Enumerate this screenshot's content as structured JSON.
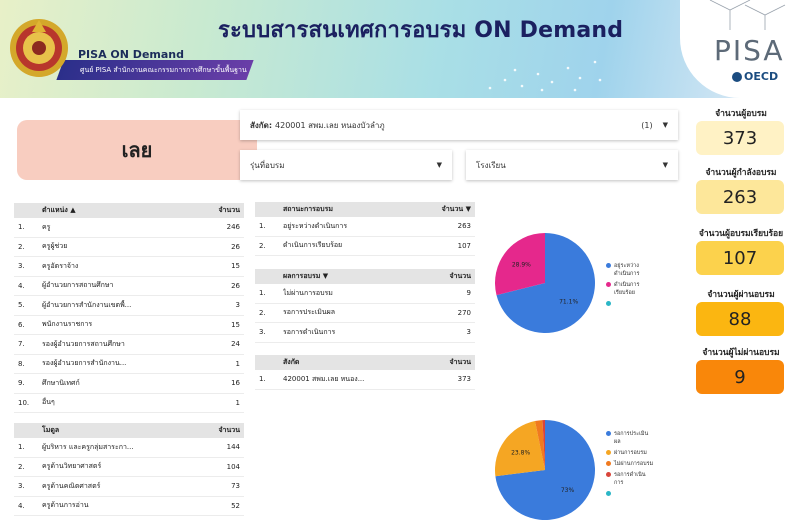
{
  "header": {
    "title": "ระบบสารสนเทศการอบรม ON Demand",
    "brand": "PISA ON Demand",
    "subtitle": "ศูนย์ PISA สำนักงานคณะกรรมการการศึกษาขั้นพื้นฐาน",
    "pisa_logo_text": "PISA",
    "oecd_text": "OECD"
  },
  "province": "เลย",
  "filters": {
    "affiliation_label": "สังกัด:",
    "affiliation_value": "420001 สพม.เลย หนองบัวลำภู",
    "affiliation_count": "(1)",
    "batch_placeholder": "รุ่นที่อบรม",
    "school_placeholder": "โรงเรียน"
  },
  "position_table": {
    "headers": {
      "name": "ตำแหน่ง ▲",
      "amount": "จำนวน"
    },
    "rows": [
      {
        "no": "1.",
        "name": "ครู",
        "amount": "246"
      },
      {
        "no": "2.",
        "name": "ครูผู้ช่วย",
        "amount": "26"
      },
      {
        "no": "3.",
        "name": "ครูอัตราจ้าง",
        "amount": "15"
      },
      {
        "no": "4.",
        "name": "ผู้อำนวยการสถานศึกษา",
        "amount": "26"
      },
      {
        "no": "5.",
        "name": "ผู้อำนวยการสำนักงานเขตพื้...",
        "amount": "3"
      },
      {
        "no": "6.",
        "name": "พนักงานราชการ",
        "amount": "15"
      },
      {
        "no": "7.",
        "name": "รองผู้อำนวยการสถานศึกษา",
        "amount": "24"
      },
      {
        "no": "8.",
        "name": "รองผู้อำนวยการสำนักงาน...",
        "amount": "1"
      },
      {
        "no": "9.",
        "name": "ศึกษานิเทศก์",
        "amount": "16"
      },
      {
        "no": "10.",
        "name": "อื่นๆ",
        "amount": "1"
      }
    ]
  },
  "module_table": {
    "headers": {
      "name": "โมดูล",
      "amount": "จำนวน"
    },
    "rows": [
      {
        "no": "1.",
        "name": "ผู้บริหาร และครูกลุ่มสาระกา...",
        "amount": "144"
      },
      {
        "no": "2.",
        "name": "ครูด้านวิทยาศาสตร์",
        "amount": "104"
      },
      {
        "no": "3.",
        "name": "ครูด้านคณิตศาสตร์",
        "amount": "73"
      },
      {
        "no": "4.",
        "name": "ครูด้านการอ่าน",
        "amount": "52"
      }
    ]
  },
  "status_table": {
    "headers": {
      "name": "สถานะการอบรม",
      "amount": "จำนวน ▼"
    },
    "rows": [
      {
        "no": "1.",
        "name": "อยู่ระหว่างดำเนินการ",
        "amount": "263"
      },
      {
        "no": "2.",
        "name": "ดำเนินการเรียบร้อย",
        "amount": "107"
      }
    ]
  },
  "result_table": {
    "headers": {
      "name": "ผลการอบรม ▼",
      "amount": "จำนวน"
    },
    "rows": [
      {
        "no": "1.",
        "name": "ไม่ผ่านการอบรม",
        "amount": "9"
      },
      {
        "no": "2.",
        "name": "รอการประเมินผล",
        "amount": "270"
      },
      {
        "no": "3.",
        "name": "รอการดำเนินการ",
        "amount": "3"
      }
    ]
  },
  "affiliation_table": {
    "headers": {
      "name": "สังกัด",
      "amount": "จำนวน"
    },
    "rows": [
      {
        "no": "1.",
        "name": "420001 สพม.เลย หนอง...",
        "amount": "373"
      }
    ]
  },
  "stats": [
    {
      "label": "จำนวนผู้อบรม",
      "value": "373",
      "color": "#fff2c5"
    },
    {
      "label": "จำนวนผู้กำลังอบรม",
      "value": "263",
      "color": "#fde79a"
    },
    {
      "label": "จำนวนผู้อบรมเรียบร้อย",
      "value": "107",
      "color": "#fcd24c"
    },
    {
      "label": "จำนวนผู้ผ่านอบรม",
      "value": "88",
      "color": "#fbb611"
    },
    {
      "label": "จำนวนผู้ไม่ผ่านอบรม",
      "value": "9",
      "color": "#f9870a"
    }
  ],
  "chart_data": [
    {
      "type": "pie",
      "slices": [
        {
          "label": "อยู่ระหว่างดำเนินการ",
          "value": 71.1,
          "color": "#3a7bdc",
          "display": "71.1%"
        },
        {
          "label": "ดำเนินการเรียบร้อย",
          "value": 28.9,
          "color": "#e5288c",
          "display": "28.9%"
        },
        {
          "label": "",
          "value": 0,
          "color": "#2bb6c6",
          "display": ""
        }
      ]
    },
    {
      "type": "pie",
      "slices": [
        {
          "label": "รอการประเมินผล",
          "value": 73,
          "color": "#3a7bdc",
          "display": "73%"
        },
        {
          "label": "ผ่านการอบรม",
          "value": 23.8,
          "color": "#f5a623",
          "display": "23.8%"
        },
        {
          "label": "ไม่ผ่านการอบรม",
          "value": 2.4,
          "color": "#f07a1f",
          "display": ""
        },
        {
          "label": "รอการดำเนินการ",
          "value": 0.8,
          "color": "#d9453a",
          "display": ""
        },
        {
          "label": "",
          "value": 0,
          "color": "#2bb6c6",
          "display": ""
        }
      ]
    }
  ]
}
